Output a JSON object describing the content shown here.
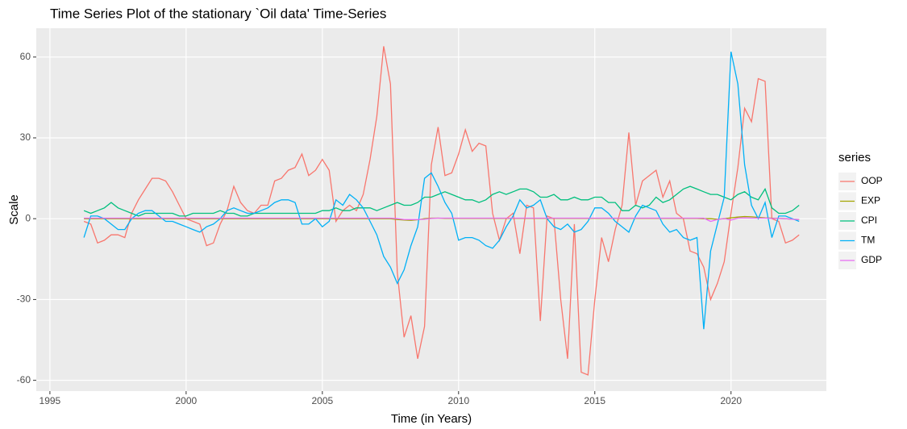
{
  "chart_data": {
    "type": "line",
    "title": "Time Series Plot of the stationary `Oil data' Time-Series",
    "x_label": "Time (in Years)",
    "y_label": "Scale",
    "legend_title": "series",
    "x": [
      1996.25,
      1996.5,
      1996.75,
      1997,
      1997.25,
      1997.5,
      1997.75,
      1998,
      1998.25,
      1998.5,
      1998.75,
      1999,
      1999.25,
      1999.5,
      1999.75,
      2000,
      2000.25,
      2000.5,
      2000.75,
      2001,
      2001.25,
      2001.5,
      2001.75,
      2002,
      2002.25,
      2002.5,
      2002.75,
      2003,
      2003.25,
      2003.5,
      2003.75,
      2004,
      2004.25,
      2004.5,
      2004.75,
      2005,
      2005.25,
      2005.5,
      2005.75,
      2006,
      2006.25,
      2006.5,
      2006.75,
      2007,
      2007.25,
      2007.5,
      2007.75,
      2008,
      2008.25,
      2008.5,
      2008.75,
      2009,
      2009.25,
      2009.5,
      2009.75,
      2010,
      2010.25,
      2010.5,
      2010.75,
      2011,
      2011.25,
      2011.5,
      2011.75,
      2012,
      2012.25,
      2012.5,
      2012.75,
      2013,
      2013.25,
      2013.5,
      2013.75,
      2014,
      2014.25,
      2014.5,
      2014.75,
      2015,
      2015.25,
      2015.5,
      2015.75,
      2016,
      2016.25,
      2016.5,
      2016.75,
      2017,
      2017.25,
      2017.5,
      2017.75,
      2018,
      2018.25,
      2018.5,
      2018.75,
      2019,
      2019.25,
      2019.5,
      2019.75,
      2020,
      2020.25,
      2020.5,
      2020.75,
      2021,
      2021.25,
      2021.5,
      2021.75,
      2022,
      2022.25,
      2022.5
    ],
    "series": [
      {
        "name": "OOP",
        "color": "#F8766D",
        "values": [
          -1,
          -2,
          -9,
          -8,
          -6,
          -6,
          -7,
          2,
          7,
          11,
          15,
          15,
          14,
          10,
          5,
          0,
          -1,
          -2,
          -10,
          -9,
          -2,
          3,
          12,
          6,
          3,
          2,
          5,
          5,
          14,
          15,
          18,
          19,
          24,
          16,
          18,
          22,
          18,
          -1,
          3,
          5,
          3,
          9,
          22,
          38,
          64,
          50,
          -20,
          -44,
          -36,
          -52,
          -40,
          20,
          34,
          16,
          17,
          24,
          33,
          25,
          28,
          27,
          2,
          -8,
          0,
          2,
          -13,
          5,
          4,
          -38,
          1,
          0,
          -30,
          -52,
          -2,
          -57,
          -58,
          -30,
          -7,
          -16,
          -4,
          5,
          32,
          5,
          14,
          16,
          18,
          8,
          14,
          2,
          0,
          -12,
          -13,
          -18,
          -30,
          -24,
          -16,
          2,
          19,
          41,
          36,
          52,
          51,
          0,
          -1,
          -9,
          -8,
          -6
        ]
      },
      {
        "name": "EXP",
        "color": "#A3A500",
        "values": [
          0,
          0,
          0,
          0,
          0,
          0,
          0,
          0,
          0,
          0,
          0,
          0,
          0,
          0,
          0,
          0,
          0,
          0,
          0,
          0,
          0,
          0,
          0,
          0,
          0,
          0,
          0,
          0,
          0,
          0,
          0,
          0,
          0,
          0,
          0,
          0,
          0,
          0,
          0,
          0,
          0,
          0,
          0,
          0,
          0,
          0,
          -0.3,
          -0.5,
          -0.6,
          -0.4,
          0,
          0.2,
          0.2,
          0.1,
          0.1,
          0.1,
          0.1,
          0.1,
          0.1,
          0.1,
          0.1,
          0.1,
          0.1,
          0.1,
          0.1,
          0.1,
          0.1,
          0.1,
          0.1,
          0.1,
          0.1,
          0.1,
          0.1,
          0.1,
          0.1,
          0.1,
          0.1,
          0.1,
          0.1,
          0.1,
          0.1,
          0.1,
          0.1,
          0.1,
          0.1,
          0.1,
          0.1,
          0.1,
          0.1,
          0.1,
          0.1,
          0,
          0,
          -0.2,
          0,
          0.3,
          0.6,
          0.8,
          0.7,
          0.5,
          0.3,
          0.2,
          0.1,
          0,
          -0.2,
          -0.3
        ]
      },
      {
        "name": "CPI",
        "color": "#00BF7D",
        "values": [
          3,
          2,
          3,
          4,
          6,
          4,
          3,
          2,
          1,
          2,
          2,
          2,
          2,
          2,
          1,
          1,
          2,
          2,
          2,
          2,
          3,
          2,
          2,
          1,
          1,
          2,
          2,
          2,
          2,
          2,
          2,
          2,
          2,
          2,
          2,
          3,
          3,
          4,
          3,
          3,
          4,
          4,
          4,
          3,
          4,
          5,
          6,
          5,
          5,
          6,
          8,
          8,
          9,
          10,
          9,
          8,
          7,
          7,
          6,
          7,
          9,
          10,
          9,
          10,
          11,
          11,
          10,
          8,
          8,
          9,
          7,
          7,
          8,
          7,
          7,
          8,
          8,
          6,
          6,
          3,
          3,
          5,
          4,
          5,
          8,
          6,
          7,
          9,
          11,
          12,
          11,
          10,
          9,
          9,
          8,
          7,
          9,
          10,
          8,
          7,
          11,
          4,
          2,
          2,
          3,
          5
        ]
      },
      {
        "name": "TM",
        "color": "#00B0F6",
        "values": [
          -7,
          1,
          1,
          0,
          -2,
          -4,
          -4,
          0,
          2,
          3,
          3,
          1,
          -1,
          -1,
          -2,
          -3,
          -4,
          -5,
          -3,
          -2,
          0,
          3,
          4,
          3,
          2,
          2,
          3,
          4,
          6,
          7,
          7,
          6,
          -2,
          -2,
          0,
          -3,
          -1,
          7,
          5,
          9,
          7,
          4,
          -1,
          -6,
          -14,
          -18,
          -24,
          -19,
          -10,
          -3,
          15,
          17,
          12,
          6,
          2,
          -8,
          -7,
          -7,
          -8,
          -10,
          -11,
          -8,
          -3,
          1,
          7,
          4,
          5,
          7,
          0,
          -3,
          -4,
          -2,
          -5,
          -4,
          -1,
          4,
          4,
          2,
          -1,
          -3,
          -5,
          1,
          5,
          4,
          3,
          -2,
          -5,
          -4,
          -7,
          -8,
          -7,
          -41,
          -12,
          -2,
          8,
          62,
          50,
          20,
          5,
          0,
          6,
          -7,
          1,
          1,
          0,
          -1
        ]
      },
      {
        "name": "GDP",
        "color": "#E76BF3",
        "values": [
          0.2,
          0.2,
          0.2,
          0.2,
          0.2,
          0.2,
          0.2,
          0.2,
          0.2,
          0.2,
          0.2,
          0.2,
          0.2,
          0.2,
          0.2,
          0.2,
          0.2,
          0.2,
          0.2,
          0.2,
          0.2,
          0.2,
          0.2,
          0.2,
          0.2,
          0.2,
          0.2,
          0.2,
          0.2,
          0.2,
          0.2,
          0.2,
          0.2,
          0.2,
          0.2,
          0.2,
          0.2,
          0.2,
          0.2,
          0.2,
          0.2,
          0.2,
          0.2,
          0.2,
          0.2,
          0.2,
          0,
          -0.3,
          -0.3,
          -0.3,
          -0.2,
          0.1,
          0.2,
          0.2,
          0.2,
          0.2,
          0.2,
          0.2,
          0.2,
          0.2,
          0.2,
          0.2,
          0.2,
          0.2,
          0.2,
          0.2,
          0.2,
          0.2,
          0.2,
          0.2,
          0.2,
          0.2,
          0.2,
          0.2,
          0.2,
          0.2,
          0.2,
          0.2,
          0.2,
          0.2,
          0.2,
          0.2,
          0.2,
          0.2,
          0.2,
          0.2,
          0.2,
          0.2,
          0.2,
          0.2,
          0.2,
          0.2,
          -1,
          -0.3,
          0.1,
          -0.5,
          0.2,
          0.3,
          0.2,
          0.2,
          0.2,
          0.1,
          0.1,
          0,
          -0.2,
          -0.3
        ]
      }
    ],
    "xlim": [
      1994.5,
      2023.5
    ],
    "ylim": [
      -64,
      70.7
    ],
    "xticks": [
      1995,
      2000,
      2005,
      2010,
      2015,
      2020
    ],
    "yticks": [
      -60,
      -30,
      0,
      30,
      60
    ],
    "grid": true,
    "legend": "right"
  }
}
